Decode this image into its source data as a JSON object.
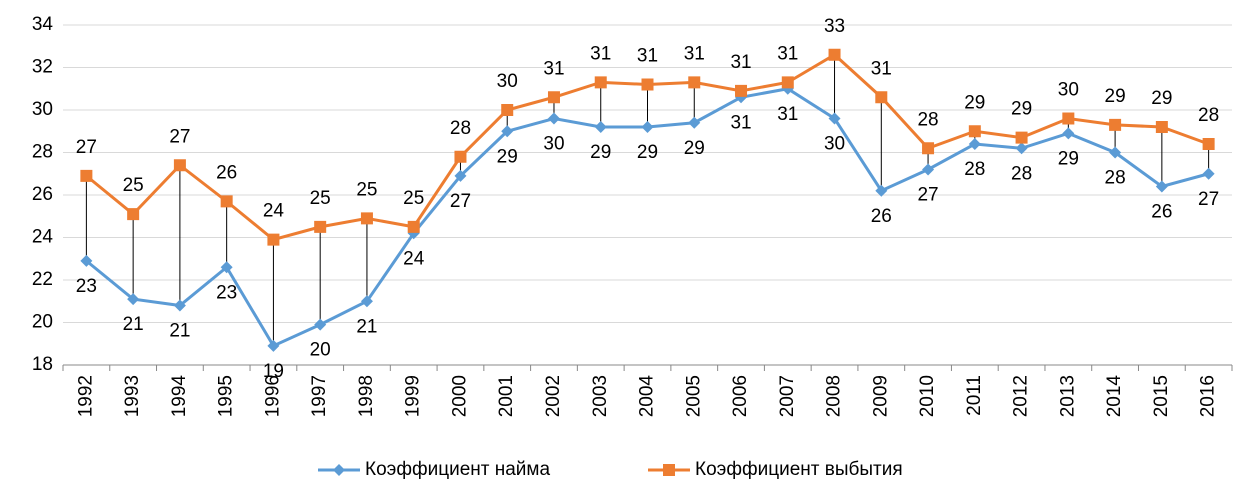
{
  "chart_data": {
    "type": "line",
    "categories": [
      "1992",
      "1993",
      "1994",
      "1995",
      "1996",
      "1997",
      "1998",
      "1999",
      "2000",
      "2001",
      "2002",
      "2003",
      "2004",
      "2005",
      "2006",
      "2007",
      "2008",
      "2009",
      "2010",
      "2011",
      "2012",
      "2013",
      "2014",
      "2015",
      "2016"
    ],
    "series": [
      {
        "name": "Коэффициент найма",
        "color": "#5b9bd5",
        "values": [
          22.9,
          21.1,
          20.8,
          22.6,
          18.9,
          19.9,
          21.0,
          24.2,
          26.9,
          29.0,
          29.6,
          29.2,
          29.2,
          29.4,
          30.6,
          31.0,
          29.6,
          26.2,
          27.2,
          28.4,
          28.2,
          28.9,
          28.0,
          26.4,
          27.0
        ],
        "value_labels": [
          "23",
          "21",
          "21",
          "23",
          "19",
          "20",
          "21",
          "24",
          "27",
          "29",
          "30",
          "29",
          "29",
          "29",
          "31",
          "31",
          "30",
          "26",
          "27",
          "28",
          "28",
          "29",
          "28",
          "26",
          "27"
        ]
      },
      {
        "name": "Коэффициент выбытия",
        "color": "#ed7d31",
        "values": [
          26.9,
          25.1,
          27.4,
          25.7,
          23.9,
          24.5,
          24.9,
          24.5,
          27.8,
          30.0,
          30.6,
          31.3,
          31.2,
          31.3,
          30.9,
          31.3,
          32.6,
          30.6,
          28.2,
          29.0,
          28.7,
          29.6,
          29.3,
          29.2,
          28.4
        ],
        "value_labels": [
          "27",
          "25",
          "27",
          "26",
          "24",
          "25",
          "25",
          "25",
          "28",
          "30",
          "31",
          "31",
          "31",
          "31",
          "31",
          "31",
          "33",
          "31",
          "28",
          "29",
          "29",
          "30",
          "29",
          "29",
          "28"
        ]
      }
    ],
    "ylim": [
      18,
      34
    ],
    "yticks": [
      18,
      20,
      22,
      24,
      26,
      28,
      30,
      32,
      34
    ],
    "grid": true,
    "legend": "bottom"
  }
}
